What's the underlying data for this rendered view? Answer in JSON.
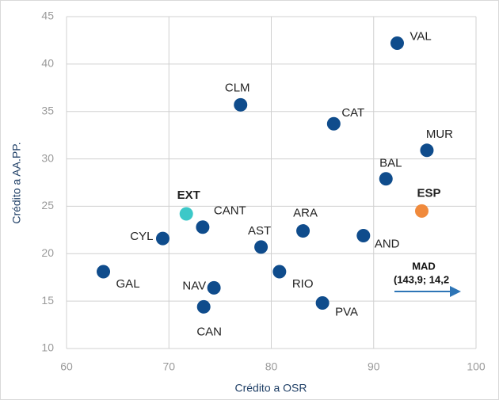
{
  "chart_data": {
    "type": "scatter",
    "x_label": "Crédito a OSR",
    "y_label": "Crédito a AA.PP.",
    "xlim": [
      60,
      100
    ],
    "xticks": [
      60,
      70,
      80,
      90,
      100
    ],
    "ylim": [
      10,
      45
    ],
    "yticks": [
      10,
      15,
      20,
      25,
      30,
      35,
      40,
      45
    ],
    "grid": true,
    "points": [
      {
        "label": "VAL",
        "x": 92.3,
        "y": 42.2,
        "color": "#0f4c8c"
      },
      {
        "label": "CLM",
        "x": 77.0,
        "y": 35.7,
        "color": "#0f4c8c"
      },
      {
        "label": "CAT",
        "x": 86.1,
        "y": 33.7,
        "color": "#0f4c8c"
      },
      {
        "label": "MUR",
        "x": 95.2,
        "y": 30.9,
        "color": "#0f4c8c"
      },
      {
        "label": "BAL",
        "x": 91.2,
        "y": 27.9,
        "color": "#0f4c8c"
      },
      {
        "label": "ESP",
        "x": 94.7,
        "y": 24.5,
        "color": "#f08a3c",
        "bold": true
      },
      {
        "label": "EXT",
        "x": 71.7,
        "y": 24.2,
        "color": "#3cc8c8",
        "bold": true
      },
      {
        "label": "CANT",
        "x": 73.3,
        "y": 22.8,
        "color": "#0f4c8c"
      },
      {
        "label": "ARA",
        "x": 83.1,
        "y": 22.4,
        "color": "#0f4c8c"
      },
      {
        "label": "AND",
        "x": 89.0,
        "y": 21.9,
        "color": "#0f4c8c"
      },
      {
        "label": "CYL",
        "x": 69.4,
        "y": 21.6,
        "color": "#0f4c8c"
      },
      {
        "label": "AST",
        "x": 79.0,
        "y": 20.7,
        "color": "#0f4c8c"
      },
      {
        "label": "GAL",
        "x": 63.6,
        "y": 18.1,
        "color": "#0f4c8c"
      },
      {
        "label": "RIO",
        "x": 80.8,
        "y": 18.1,
        "color": "#0f4c8c"
      },
      {
        "label": "NAV",
        "x": 74.4,
        "y": 16.4,
        "color": "#0f4c8c"
      },
      {
        "label": "CAN",
        "x": 73.4,
        "y": 14.4,
        "color": "#0f4c8c"
      },
      {
        "label": "PVA",
        "x": 85.0,
        "y": 14.8,
        "color": "#0f4c8c"
      }
    ],
    "annotation": {
      "title": "MAD",
      "text": "(143,9;  14,2"
    }
  }
}
